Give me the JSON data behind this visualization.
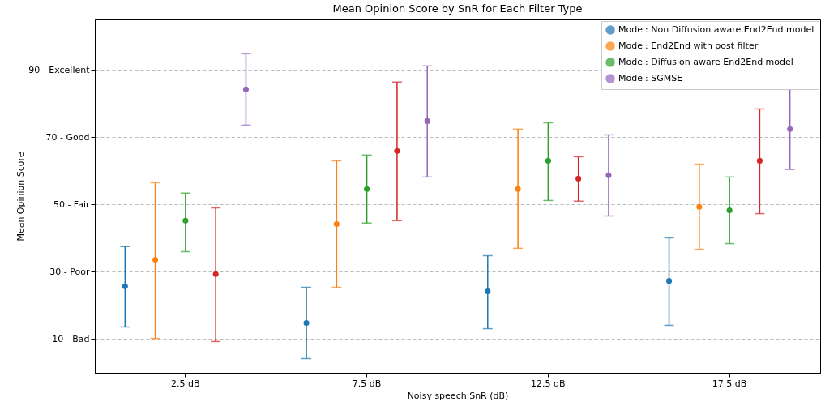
{
  "chart_data": {
    "type": "scatter",
    "title": "Mean Opinion Score by SnR for Each Filter Type",
    "xlabel": "Noisy speech SnR (dB)",
    "ylabel": "Mean Opinion Score",
    "categories": [
      "2.5 dB",
      "7.5 dB",
      "12.5 dB",
      "17.5 dB"
    ],
    "ylim": [
      0,
      105
    ],
    "yticks": [
      {
        "value": 10,
        "label": "10 - Bad"
      },
      {
        "value": 30,
        "label": "30 - Poor"
      },
      {
        "value": 50,
        "label": "50 - Fair"
      },
      {
        "value": 70,
        "label": "70 - Good"
      },
      {
        "value": 90,
        "label": "90 - Excellent"
      }
    ],
    "grid": "y",
    "legend": "top right",
    "marker": "circle",
    "series": [
      {
        "name": "Model: Non Diffusion aware End2End model",
        "color": "#1f77b4",
        "values": [
          25.7,
          14.8,
          24.2,
          27.3
        ],
        "errors": [
          [
            13.6,
            37.5
          ],
          [
            4.2,
            25.4
          ],
          [
            13.1,
            34.8
          ],
          [
            14.1,
            40.1
          ]
        ]
      },
      {
        "name": "Model: End2End with post filter",
        "color": "#ff7f0e",
        "values": [
          33.6,
          44.2,
          54.6,
          49.3
        ],
        "errors": [
          [
            10.2,
            56.5
          ],
          [
            25.4,
            63.0
          ],
          [
            37.0,
            72.4
          ],
          [
            36.7,
            62.0
          ]
        ]
      },
      {
        "name": "Model: Diffusion aware End2End model",
        "color": "#2ca02c",
        "values": [
          45.2,
          54.6,
          63.0,
          48.3
        ],
        "errors": [
          [
            36.0,
            53.4
          ],
          [
            44.5,
            64.7
          ],
          [
            51.2,
            74.3
          ],
          [
            38.4,
            58.2
          ]
        ]
      },
      {
        "color": "#d62728",
        "values": [
          29.3,
          65.9,
          57.7,
          63.0
        ],
        "errors": [
          [
            9.3,
            49.0
          ],
          [
            45.2,
            86.4
          ],
          [
            51.0,
            64.2
          ],
          [
            47.3,
            78.4
          ]
        ]
      },
      {
        "name": "Model: SGMSE",
        "color": "#9467bd",
        "values": [
          84.2,
          74.8,
          58.7,
          72.4
        ],
        "errors": [
          [
            73.6,
            94.8
          ],
          [
            58.2,
            91.2
          ],
          [
            46.6,
            70.7
          ],
          [
            60.4,
            84.2
          ]
        ]
      }
    ]
  }
}
